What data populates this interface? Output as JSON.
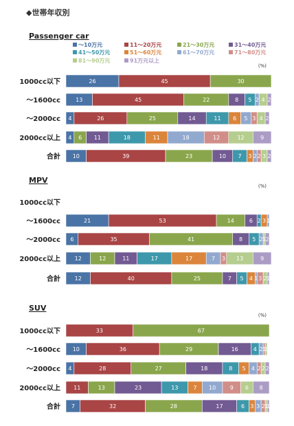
{
  "title": "◆世帯年収別",
  "unit": "(%)",
  "legend": [
    {
      "label": "～10万元",
      "color": "#4a73a6"
    },
    {
      "label": "11～20万元",
      "color": "#a94545"
    },
    {
      "label": "21～30万元",
      "color": "#8aa64c"
    },
    {
      "label": "31～40万元",
      "color": "#725a92"
    },
    {
      "label": "41～50万元",
      "color": "#3e98ab"
    },
    {
      "label": "51～60万元",
      "color": "#db853c"
    },
    {
      "label": "61～70万元",
      "color": "#92a9cf"
    },
    {
      "label": "71～80万元",
      "color": "#d18e89"
    },
    {
      "label": "81～90万元",
      "color": "#b5cd8e"
    },
    {
      "label": "91万元以上",
      "color": "#ab9cc5"
    }
  ],
  "chart_data": [
    {
      "type": "bar",
      "stacked": true,
      "orientation": "horizontal",
      "title": "Passenger car",
      "unit": "(%)",
      "categories": [
        "1000cc以下",
        "～1600cc",
        "～2000cc",
        "2000cc以上",
        "合計"
      ],
      "series": [
        {
          "name": "～10万元",
          "values": [
            26,
            13,
            4,
            4,
            10
          ]
        },
        {
          "name": "11～20万元",
          "values": [
            45,
            45,
            26,
            0,
            39
          ]
        },
        {
          "name": "21～30万元",
          "values": [
            30,
            22,
            25,
            6,
            23
          ]
        },
        {
          "name": "31～40万元",
          "values": [
            0,
            8,
            14,
            11,
            10
          ]
        },
        {
          "name": "41～50万元",
          "values": [
            0,
            5,
            11,
            18,
            7
          ]
        },
        {
          "name": "51～60万元",
          "values": [
            0,
            0,
            6,
            11,
            3
          ]
        },
        {
          "name": "61～70万元",
          "values": [
            0,
            2,
            5,
            18,
            2
          ]
        },
        {
          "name": "71～80万元",
          "values": [
            0,
            0,
            3,
            12,
            2
          ]
        },
        {
          "name": "81～90万元",
          "values": [
            0,
            4,
            4,
            12,
            3
          ]
        },
        {
          "name": "91万元以上",
          "values": [
            0,
            2,
            2,
            9,
            2
          ]
        }
      ]
    },
    {
      "type": "bar",
      "stacked": true,
      "orientation": "horizontal",
      "title": "MPV",
      "unit": "(%)",
      "categories": [
        "1000cc以下",
        "～1600cc",
        "～2000cc",
        "2000cc以上",
        "合計"
      ],
      "series": [
        {
          "name": "～10万元",
          "values": [
            0,
            21,
            6,
            12,
            12
          ]
        },
        {
          "name": "11～20万元",
          "values": [
            0,
            53,
            35,
            0,
            40
          ]
        },
        {
          "name": "21～30万元",
          "values": [
            0,
            14,
            41,
            12,
            25
          ]
        },
        {
          "name": "31～40万元",
          "values": [
            0,
            6,
            8,
            11,
            7
          ]
        },
        {
          "name": "41～50万元",
          "values": [
            0,
            2,
            5,
            17,
            5
          ]
        },
        {
          "name": "51～60万元",
          "values": [
            0,
            3,
            0,
            17,
            4
          ]
        },
        {
          "name": "61～70万元",
          "values": [
            0,
            1,
            2,
            7,
            1
          ]
        },
        {
          "name": "71～80万元",
          "values": [
            0,
            0,
            0,
            3,
            3
          ]
        },
        {
          "name": "81～90万元",
          "values": [
            0,
            0,
            1,
            13,
            2
          ]
        },
        {
          "name": "91万元以上",
          "values": [
            0,
            0,
            2,
            9,
            1
          ]
        }
      ]
    },
    {
      "type": "bar",
      "stacked": true,
      "orientation": "horizontal",
      "title": "SUV",
      "unit": "(%)",
      "categories": [
        "1000cc以下",
        "～1600cc",
        "～2000cc",
        "2000cc以上",
        "合計"
      ],
      "series": [
        {
          "name": "～10万元",
          "values": [
            0,
            10,
            4,
            0,
            7
          ]
        },
        {
          "name": "11～20万元",
          "values": [
            33,
            36,
            28,
            11,
            32
          ]
        },
        {
          "name": "21～30万元",
          "values": [
            67,
            29,
            27,
            13,
            28
          ]
        },
        {
          "name": "31～40万元",
          "values": [
            0,
            16,
            18,
            23,
            17
          ]
        },
        {
          "name": "41～50万元",
          "values": [
            0,
            4,
            8,
            13,
            6
          ]
        },
        {
          "name": "51～60万元",
          "values": [
            0,
            0,
            5,
            7,
            3
          ]
        },
        {
          "name": "61～70万元",
          "values": [
            0,
            2,
            4,
            10,
            3
          ]
        },
        {
          "name": "71～80万元",
          "values": [
            0,
            1,
            2,
            9,
            2
          ]
        },
        {
          "name": "81～90万元",
          "values": [
            0,
            1,
            2,
            6,
            1
          ]
        },
        {
          "name": "91万元以上",
          "values": [
            0,
            0,
            2,
            8,
            1
          ]
        }
      ]
    }
  ]
}
